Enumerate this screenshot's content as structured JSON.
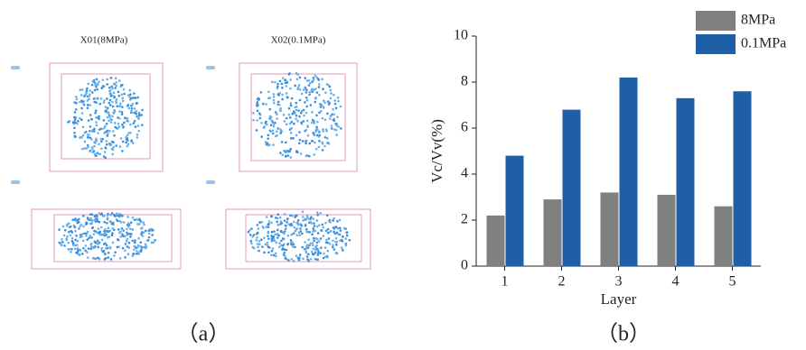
{
  "panel_a": {
    "titles": [
      "X01(8MPa)",
      "X02(0.1MPa)"
    ],
    "caption": "（a）"
  },
  "panel_b": {
    "caption": "（b）"
  },
  "chart_data": {
    "type": "bar",
    "categories": [
      "1",
      "2",
      "3",
      "4",
      "5"
    ],
    "series": [
      {
        "name": "8MPa",
        "color": "#808080",
        "values": [
          2.2,
          2.9,
          3.2,
          3.1,
          2.6
        ]
      },
      {
        "name": "0.1MPa",
        "color": "#1f5fa8",
        "values": [
          4.8,
          6.8,
          8.2,
          7.3,
          7.6
        ]
      }
    ],
    "x_label": "Layer",
    "y_label": "Vc/Vv(%)",
    "ylim": [
      0,
      10
    ],
    "yticks": [
      0,
      2,
      4,
      6,
      8,
      10
    ],
    "legend": "upper-right",
    "grid": false
  }
}
